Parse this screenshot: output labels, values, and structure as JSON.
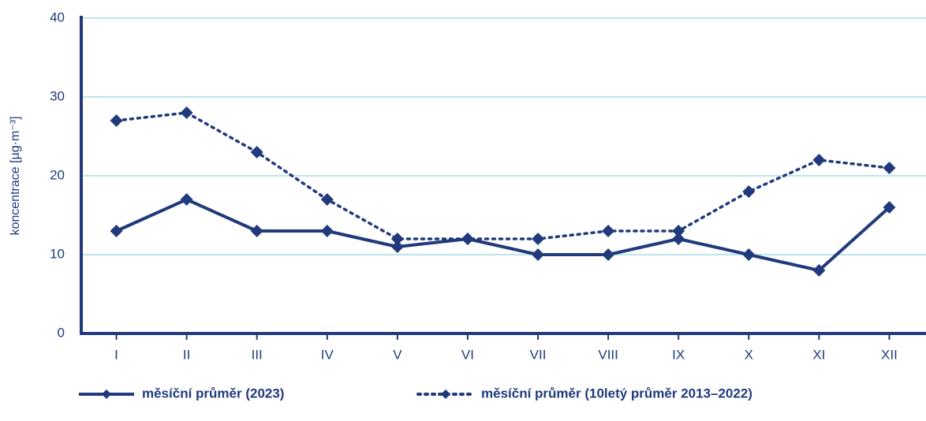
{
  "chart_data": {
    "type": "line",
    "y_label": "koncentrace [µg·m⁻³]",
    "categories": [
      "I",
      "II",
      "III",
      "IV",
      "V",
      "VI",
      "VII",
      "VIII",
      "IX",
      "X",
      "XI",
      "XII"
    ],
    "series": [
      {
        "name": "měsíční průměr (2023)",
        "color": "#203a7c",
        "style": "solid",
        "values": [
          13,
          17,
          13,
          13,
          11,
          12,
          10,
          10,
          12,
          10,
          8,
          16
        ]
      },
      {
        "name": "měsíční průměr (10letý průměr 2013–2022)",
        "color": "#203a7c",
        "style": "dotted",
        "values": [
          27,
          28,
          23,
          17,
          12,
          12,
          12,
          13,
          13,
          18,
          22,
          21
        ]
      }
    ],
    "ylim": [
      0,
      40
    ],
    "yticks": [
      0,
      10,
      20,
      30,
      40
    ],
    "grid": true
  }
}
